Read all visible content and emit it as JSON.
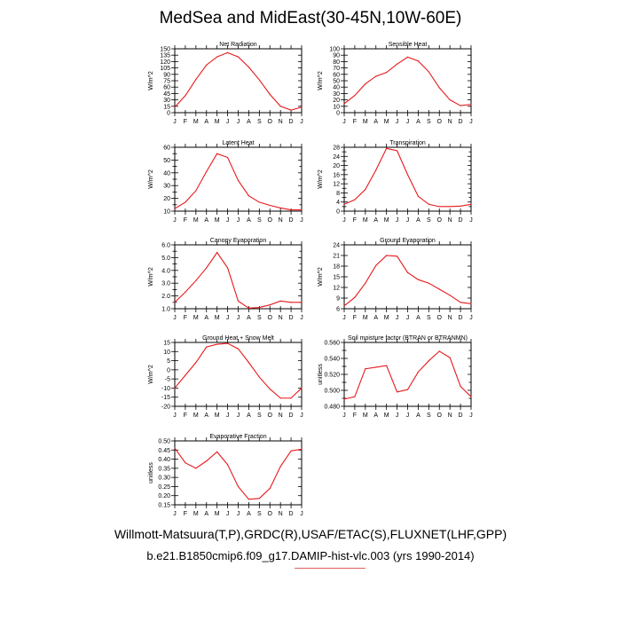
{
  "title": "MedSea and MidEast(30-45N,10W-60E)",
  "footer_line1": "Willmott-Matsuura(T,P),GRDC(R),USAF/ETAC(S),FLUXNET(LHF,GPP)",
  "footer_line2": "b.e21.B1850cmip6.f09_g17.DAMIP-hist-vlc.003 (yrs 1990-2014)",
  "colors": {
    "line": "#e8191c",
    "axis": "#000000"
  },
  "months": [
    "J",
    "F",
    "M",
    "A",
    "M",
    "J",
    "J",
    "A",
    "S",
    "O",
    "N",
    "D",
    "J"
  ],
  "chart_data": [
    {
      "type": "line",
      "title": "Net Radiation",
      "ylabel": "W/m^2",
      "ylim": [
        0,
        150
      ],
      "yticks": [
        0,
        15,
        30,
        45,
        60,
        75,
        90,
        105,
        120,
        135,
        150
      ],
      "yticklabels": [
        "0",
        "15",
        "30",
        "45",
        "60",
        "75",
        "90",
        "105",
        "120",
        "135",
        "150"
      ],
      "values": [
        13,
        40,
        78,
        112,
        131,
        141,
        131,
        107,
        77,
        43,
        15,
        6,
        13
      ]
    },
    {
      "type": "line",
      "title": "Sensible Heat",
      "ylabel": "W/m^2",
      "ylim": [
        0,
        100
      ],
      "yticks": [
        0,
        10,
        20,
        30,
        40,
        50,
        60,
        70,
        80,
        90,
        100
      ],
      "yticklabels": [
        "0",
        "10",
        "20",
        "30",
        "40",
        "50",
        "60",
        "70",
        "80",
        "90",
        "100"
      ],
      "values": [
        14,
        27,
        45,
        57,
        63,
        76,
        87,
        81,
        64,
        39,
        20,
        11,
        13
      ]
    },
    {
      "type": "line",
      "title": "Latent Heat",
      "ylabel": "W/m^2",
      "ylim": [
        10,
        60
      ],
      "yticks": [
        10,
        15,
        20,
        25,
        30,
        35,
        40,
        45,
        50,
        55,
        60
      ],
      "yticklabels": [
        "10",
        "",
        "20",
        "",
        "30",
        "",
        "40",
        "",
        "50",
        "",
        "60"
      ],
      "values": [
        12,
        17,
        26,
        41,
        55,
        52,
        34,
        22,
        17,
        14.5,
        12.5,
        11,
        11
      ]
    },
    {
      "type": "line",
      "title": "Transpiration",
      "ylabel": "W/m^2",
      "ylim": [
        0,
        28
      ],
      "yticks": [
        0,
        2,
        4,
        6,
        8,
        10,
        12,
        14,
        16,
        18,
        20,
        22,
        24,
        26,
        28
      ],
      "yticklabels": [
        "0",
        "",
        "4",
        "",
        "8",
        "",
        "12",
        "",
        "16",
        "",
        "20",
        "",
        "24",
        "",
        "28"
      ],
      "values": [
        3,
        5,
        9.5,
        18,
        27.5,
        26.5,
        16,
        6.5,
        3,
        2,
        2,
        2.2,
        3
      ]
    },
    {
      "type": "line",
      "title": "Canopy Evaporation",
      "ylabel": "W/m^2",
      "ylim": [
        1.0,
        6.0
      ],
      "yticks": [
        1.0,
        1.5,
        2.0,
        2.5,
        3.0,
        3.5,
        4.0,
        4.5,
        5.0,
        5.5,
        6.0
      ],
      "yticklabels": [
        "1.0",
        "",
        "2.0",
        "",
        "3.0",
        "",
        "4.0",
        "",
        "5.0",
        "",
        "6.0"
      ],
      "values": [
        1.5,
        2.3,
        3.2,
        4.2,
        5.4,
        4.2,
        1.6,
        1.05,
        1.1,
        1.3,
        1.6,
        1.5,
        1.5
      ]
    },
    {
      "type": "line",
      "title": "Ground Evaporation",
      "ylabel": "W/m^2",
      "ylim": [
        6,
        24
      ],
      "yticks": [
        6,
        9,
        12,
        15,
        18,
        21,
        24
      ],
      "yticklabels": [
        "6",
        "9",
        "12",
        "15",
        "18",
        "21",
        "24"
      ],
      "values": [
        6.8,
        9.2,
        13.2,
        18.2,
        21,
        20.8,
        16.2,
        14.2,
        13.2,
        11.5,
        9.8,
        7.8,
        7.4
      ]
    },
    {
      "type": "line",
      "title": "Ground Heat + Snow Melt",
      "ylabel": "W/m^2",
      "ylim": [
        -20,
        15
      ],
      "yticks": [
        -20,
        -15,
        -10,
        -5,
        0,
        5,
        10,
        15
      ],
      "yticklabels": [
        "-20",
        "-15",
        "-10",
        "-5",
        "0",
        "5",
        "10",
        "15"
      ],
      "values": [
        -10,
        -3,
        4,
        12.5,
        14,
        14.5,
        11.5,
        4,
        -4,
        -10.5,
        -15.5,
        -15.5,
        -10
      ]
    },
    {
      "type": "line",
      "title": "Soil moisture factor (BTRAN or BTRANMN)",
      "ylabel": "unitless",
      "ylim": [
        0.48,
        0.56
      ],
      "yticks": [
        0.48,
        0.49,
        0.5,
        0.51,
        0.52,
        0.53,
        0.54,
        0.55,
        0.56
      ],
      "yticklabels": [
        "0.480",
        "",
        "0.500",
        "",
        "0.520",
        "",
        "0.540",
        "",
        "0.560"
      ],
      "values": [
        0.489,
        0.492,
        0.527,
        0.529,
        0.531,
        0.498,
        0.501,
        0.523,
        0.537,
        0.549,
        0.541,
        0.505,
        0.492
      ]
    },
    {
      "type": "line",
      "title": "Evaporative Fraction",
      "ylabel": "unitless",
      "ylim": [
        0.15,
        0.5
      ],
      "yticks": [
        0.15,
        0.2,
        0.25,
        0.3,
        0.35,
        0.4,
        0.45,
        0.5
      ],
      "yticklabels": [
        "0.15",
        "0.20",
        "0.25",
        "0.30",
        "0.35",
        "0.40",
        "0.45",
        "0.50"
      ],
      "values": [
        0.46,
        0.38,
        0.35,
        0.39,
        0.44,
        0.37,
        0.25,
        0.18,
        0.185,
        0.24,
        0.36,
        0.445,
        0.455
      ]
    }
  ]
}
